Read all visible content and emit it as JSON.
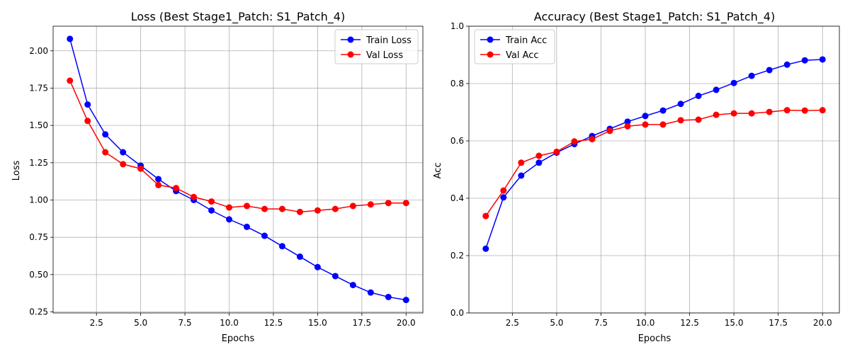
{
  "chart_data": [
    {
      "type": "line",
      "title": "Loss (Best Stage1_Patch: S1_Patch_4)",
      "xlabel": "Epochs",
      "ylabel": "Loss",
      "xlim": [
        0.05,
        20.95
      ],
      "ylim": [
        0.243,
        2.165
      ],
      "xticks": [
        2.5,
        5.0,
        7.5,
        10.0,
        12.5,
        15.0,
        17.5,
        20.0
      ],
      "xtick_labels": [
        "2.5",
        "5.0",
        "7.5",
        "10.0",
        "12.5",
        "15.0",
        "17.5",
        "20.0"
      ],
      "yticks": [
        0.25,
        0.5,
        0.75,
        1.0,
        1.25,
        1.5,
        1.75,
        2.0
      ],
      "ytick_labels": [
        "0.25",
        "0.50",
        "0.75",
        "1.00",
        "1.25",
        "1.50",
        "1.75",
        "2.00"
      ],
      "grid": true,
      "legend_position": "top-right",
      "x": [
        1,
        2,
        3,
        4,
        5,
        6,
        7,
        8,
        9,
        10,
        11,
        12,
        13,
        14,
        15,
        16,
        17,
        18,
        19,
        20
      ],
      "series": [
        {
          "name": "Train Loss",
          "color": "#0000ff",
          "values": [
            2.08,
            1.64,
            1.44,
            1.32,
            1.23,
            1.14,
            1.06,
            1.0,
            0.93,
            0.87,
            0.82,
            0.76,
            0.69,
            0.62,
            0.55,
            0.49,
            0.43,
            0.38,
            0.35,
            0.33
          ]
        },
        {
          "name": "Val Loss",
          "color": "#ff0000",
          "values": [
            1.8,
            1.53,
            1.32,
            1.24,
            1.21,
            1.1,
            1.08,
            1.02,
            0.99,
            0.95,
            0.96,
            0.94,
            0.94,
            0.92,
            0.93,
            0.94,
            0.96,
            0.97,
            0.98,
            0.98
          ]
        }
      ]
    },
    {
      "type": "line",
      "title": "Accuracy (Best Stage1_Patch: S1_Patch_4)",
      "xlabel": "Epochs",
      "ylabel": "Acc",
      "xlim": [
        0.05,
        20.95
      ],
      "ylim": [
        0.0,
        1.0
      ],
      "xticks": [
        2.5,
        5.0,
        7.5,
        10.0,
        12.5,
        15.0,
        17.5,
        20.0
      ],
      "xtick_labels": [
        "2.5",
        "5.0",
        "7.5",
        "10.0",
        "12.5",
        "15.0",
        "17.5",
        "20.0"
      ],
      "yticks": [
        0.0,
        0.2,
        0.4,
        0.6,
        0.8,
        1.0
      ],
      "ytick_labels": [
        "0.0",
        "0.2",
        "0.4",
        "0.6",
        "0.8",
        "1.0"
      ],
      "grid": true,
      "legend_position": "top-left",
      "x": [
        1,
        2,
        3,
        4,
        5,
        6,
        7,
        8,
        9,
        10,
        11,
        12,
        13,
        14,
        15,
        16,
        17,
        18,
        19,
        20
      ],
      "series": [
        {
          "name": "Train Acc",
          "color": "#0000ff",
          "values": [
            0.224,
            0.403,
            0.479,
            0.524,
            0.559,
            0.589,
            0.617,
            0.642,
            0.667,
            0.687,
            0.706,
            0.729,
            0.757,
            0.778,
            0.802,
            0.827,
            0.847,
            0.866,
            0.881,
            0.884
          ]
        },
        {
          "name": "Val Acc",
          "color": "#ff0000",
          "values": [
            0.338,
            0.427,
            0.524,
            0.548,
            0.562,
            0.598,
            0.606,
            0.635,
            0.651,
            0.657,
            0.657,
            0.672,
            0.674,
            0.691,
            0.696,
            0.696,
            0.701,
            0.707,
            0.706,
            0.707
          ]
        }
      ]
    }
  ]
}
